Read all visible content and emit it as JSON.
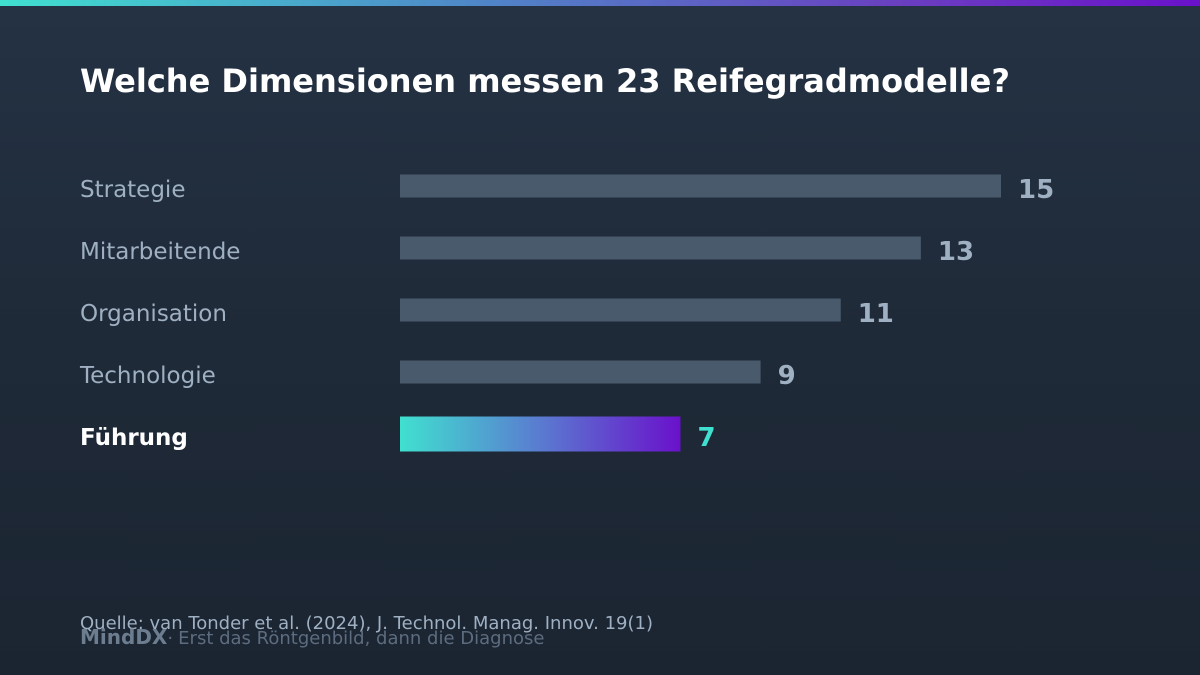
{
  "title": "Welche Dimensionen messen 23 Reifegradmodelle?",
  "chart_data": {
    "type": "bar",
    "orientation": "horizontal",
    "categories": [
      "Strategie",
      "Mitarbeitende",
      "Organisation",
      "Technologie",
      "Führung"
    ],
    "values": [
      15,
      13,
      11,
      9,
      7
    ],
    "highlight": "Führung",
    "xlim": [
      0,
      15
    ],
    "grid": false
  },
  "source": "Quelle: van Tonder et al. (2024), J. Technol. Manag. Innov. 19(1)",
  "brand": {
    "name": "MindDX",
    "separator": "·",
    "tagline": "Erst das Röntgenbild, dann die Diagnose"
  },
  "colors": {
    "bar": "#4a5a6d",
    "label": "#9fb0c2",
    "value": "#9fb0c2",
    "highlight_label": "#ffffff",
    "highlight_value": "#40e0d0",
    "gradient_start": "#40e0d0",
    "gradient_mid": "#5a7bd0",
    "gradient_end": "#6a11cb"
  }
}
